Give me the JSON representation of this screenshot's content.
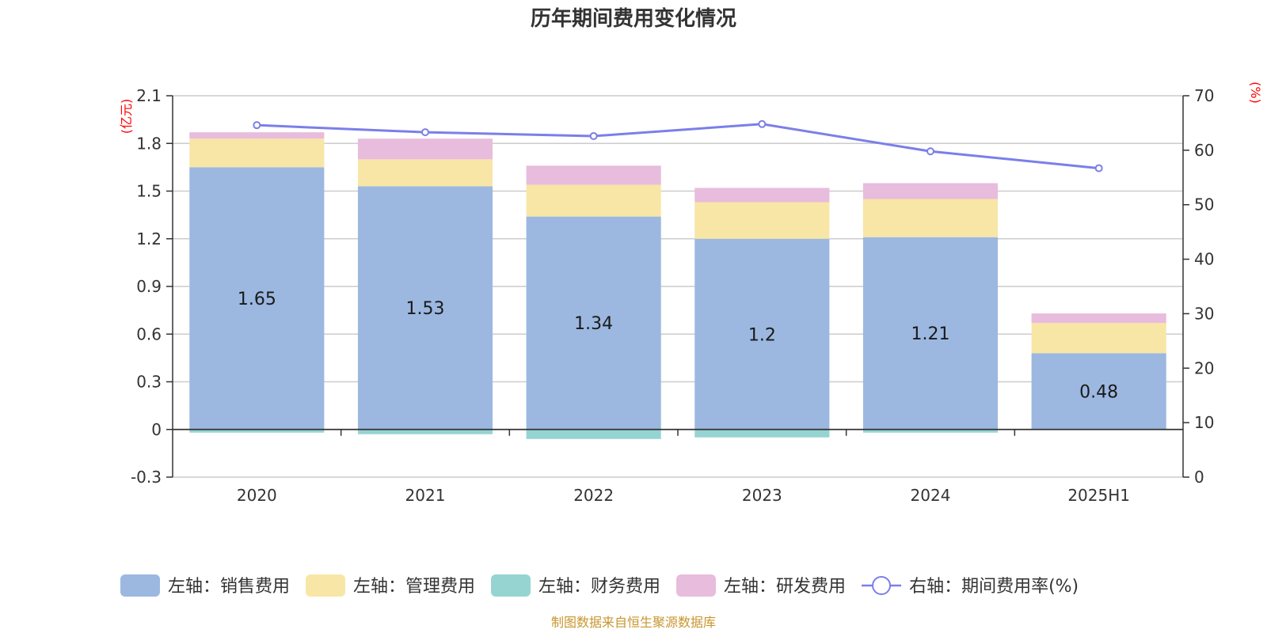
{
  "chart_data": {
    "type": "bar",
    "title": "历年期间费用变化情况",
    "categories": [
      "2020",
      "2021",
      "2022",
      "2023",
      "2024",
      "2025H1"
    ],
    "series": [
      {
        "name": "左轴：销售费用",
        "axis": "left",
        "kind": "bar",
        "color": "#9cb8e0",
        "values": [
          1.65,
          1.53,
          1.34,
          1.2,
          1.21,
          0.48
        ]
      },
      {
        "name": "左轴：管理费用",
        "axis": "left",
        "kind": "bar",
        "color": "#f8e6a6",
        "values": [
          0.18,
          0.17,
          0.2,
          0.23,
          0.24,
          0.19
        ]
      },
      {
        "name": "左轴：财务费用",
        "axis": "left",
        "kind": "bar",
        "color": "#96d4d2",
        "values": [
          -0.02,
          -0.03,
          -0.06,
          -0.05,
          -0.02,
          0.0
        ]
      },
      {
        "name": "左轴：研发费用",
        "axis": "left",
        "kind": "bar",
        "color": "#e8bcdc",
        "values": [
          0.04,
          0.13,
          0.12,
          0.09,
          0.1,
          0.06
        ]
      },
      {
        "name": "右轴：期间费用率(%)",
        "axis": "right",
        "kind": "line",
        "color": "#7b7fe8",
        "values": [
          64.6,
          63.3,
          62.6,
          64.8,
          59.8,
          56.7
        ]
      }
    ],
    "data_labels": [
      "1.65",
      "1.53",
      "1.34",
      "1.2",
      "1.21",
      "0.48"
    ],
    "left_axis": {
      "unit": "(亿元)",
      "min": -0.3,
      "max": 2.1,
      "ticks": [
        "-0.3",
        "0",
        "0.3",
        "0.6",
        "0.9",
        "1.2",
        "1.5",
        "1.8",
        "2.1"
      ]
    },
    "right_axis": {
      "unit": "(%)",
      "min": 0,
      "max": 70,
      "ticks": [
        "0",
        "10",
        "20",
        "30",
        "40",
        "50",
        "60",
        "70"
      ]
    },
    "grid": true,
    "legend_position": "bottom"
  },
  "source": "制图数据来自恒生聚源数据库"
}
